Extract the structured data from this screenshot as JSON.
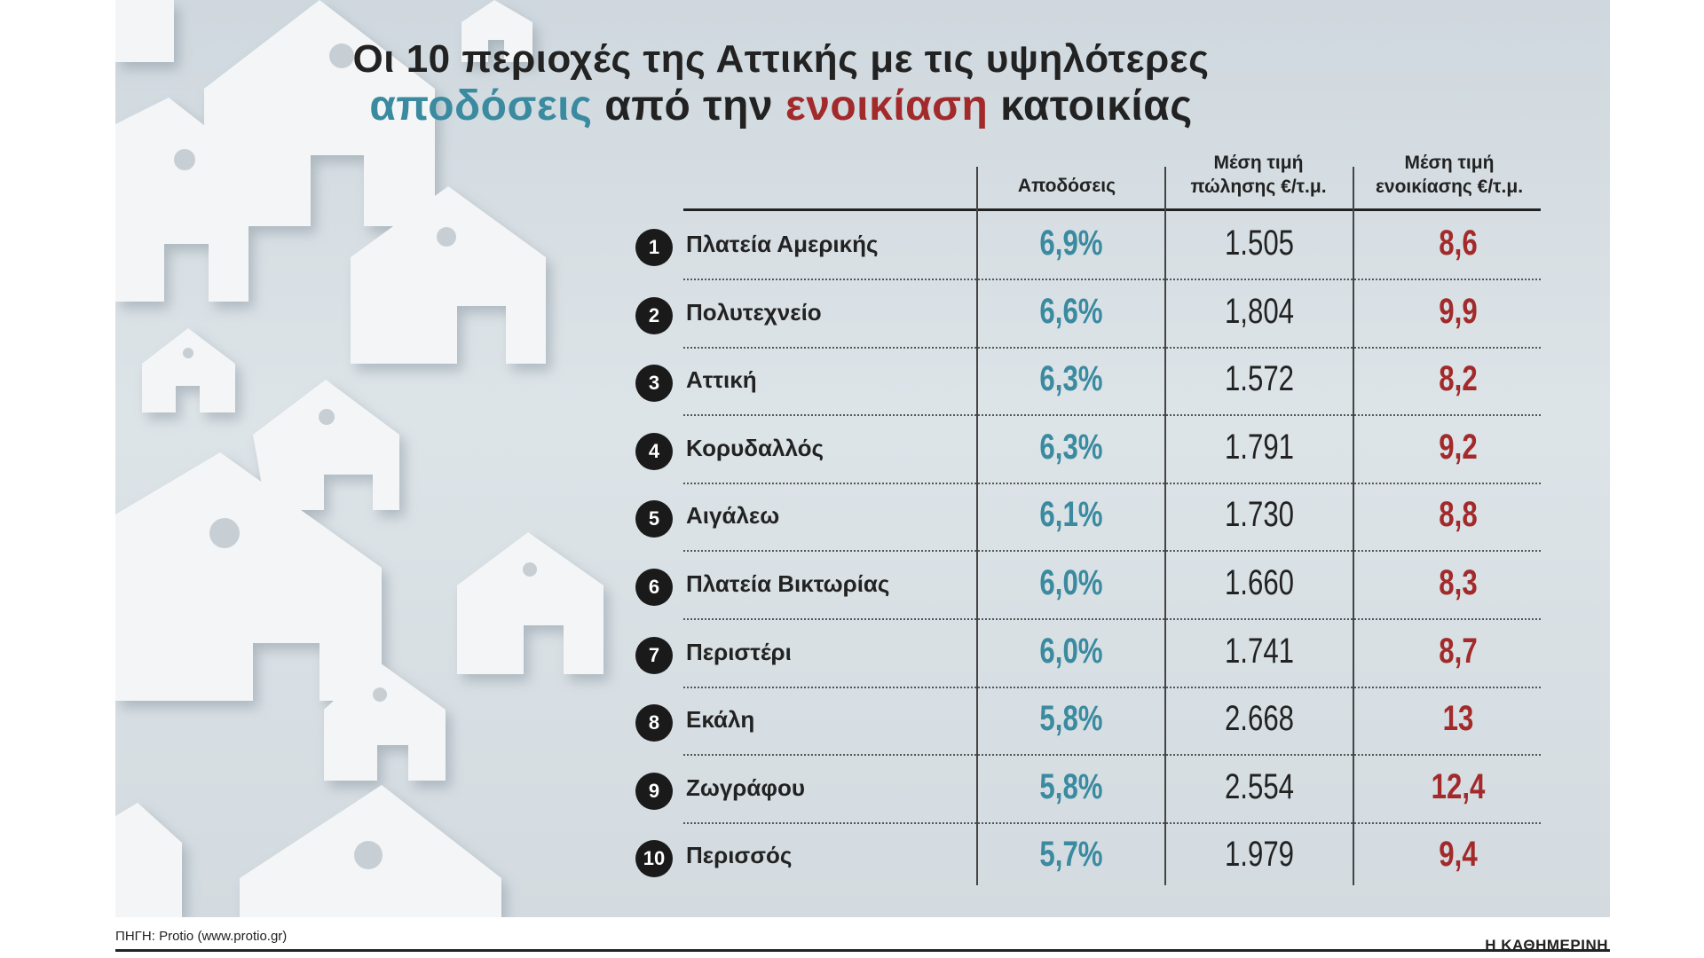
{
  "title": {
    "line1": "Οι 10 περιοχές της Αττικής με τις υψηλότερες",
    "line2_part1": "αποδόσεις",
    "line2_part2": " από την ",
    "line2_part3": "ενοικίαση",
    "line2_part4": " κατοικίας"
  },
  "headers": {
    "yield": "Αποδόσεις",
    "price_line1": "Μέση τιμή",
    "price_line2": "πώλησης €/τ.μ.",
    "rent_line1": "Μέση τιμή",
    "rent_line2": "ενοικίασης €/τ.μ."
  },
  "colors": {
    "yield": "#3a8aa0",
    "rent": "#a32a2a",
    "text": "#222222"
  },
  "chart_data": {
    "type": "table",
    "columns": [
      "Αποδόσεις",
      "Μέση τιμή πώλησης €/τ.μ.",
      "Μέση τιμή ενοικίασης €/τ.μ."
    ],
    "rows": [
      {
        "rank": "1",
        "area": "Πλατεία Αμερικής",
        "yield": "6,9%",
        "price": "1.505",
        "rent": "8,6"
      },
      {
        "rank": "2",
        "area": "Πολυτεχνείο",
        "yield": "6,6%",
        "price": "1,804",
        "rent": "9,9"
      },
      {
        "rank": "3",
        "area": "Αττική",
        "yield": "6,3%",
        "price": "1.572",
        "rent": "8,2"
      },
      {
        "rank": "4",
        "area": "Κορυδαλλός",
        "yield": "6,3%",
        "price": "1.791",
        "rent": "9,2"
      },
      {
        "rank": "5",
        "area": "Αιγάλεω",
        "yield": "6,1%",
        "price": "1.730",
        "rent": "8,8"
      },
      {
        "rank": "6",
        "area": "Πλατεία Βικτωρίας",
        "yield": "6,0%",
        "price": "1.660",
        "rent": "8,3"
      },
      {
        "rank": "7",
        "area": "Περιστέρι",
        "yield": "6,0%",
        "price": "1.741",
        "rent": "8,7"
      },
      {
        "rank": "8",
        "area": "Εκάλη",
        "yield": "5,8%",
        "price": "2.668",
        "rent": "13"
      },
      {
        "rank": "9",
        "area": "Ζωγράφου",
        "yield": "5,8%",
        "price": "2.554",
        "rent": "12,4"
      },
      {
        "rank": "10",
        "area": "Περισσός",
        "yield": "5,7%",
        "price": "1.979",
        "rent": "9,4"
      }
    ]
  },
  "footer": {
    "source": "ΠΗΓΗ: Protio (www.protio.gr)",
    "brand": "Η ΚΑΘΗΜΕΡΙΝΗ"
  }
}
